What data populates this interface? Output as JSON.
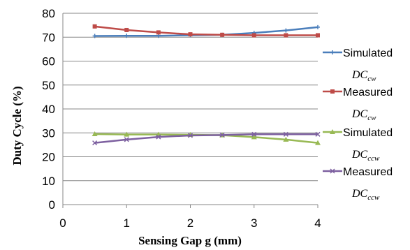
{
  "chart_data": {
    "type": "line",
    "title": "",
    "xlabel": "Sensing Gap g (mm)",
    "ylabel": "Duty Cycle (%)",
    "xlim": [
      0,
      4
    ],
    "ylim": [
      0,
      80
    ],
    "xticks": [
      "0",
      "1",
      "2",
      "3",
      "4"
    ],
    "yticks": [
      "0",
      "10",
      "20",
      "30",
      "40",
      "50",
      "60",
      "70",
      "80"
    ],
    "grid": "horizontal",
    "legend_position": "right",
    "x": [
      0.5,
      1.0,
      1.5,
      2.0,
      2.5,
      3.0,
      3.5,
      4.0
    ],
    "series": [
      {
        "name": "Simulated",
        "sub_main": "DC",
        "sub_script": "cw",
        "color": "#4a7ebb",
        "marker": "plus",
        "values": [
          70.5,
          70.6,
          70.6,
          70.8,
          71.0,
          71.8,
          72.8,
          74.2
        ]
      },
      {
        "name": "Measured",
        "sub_main": "DC",
        "sub_script": "cw",
        "color": "#be4b48",
        "marker": "square",
        "values": [
          74.5,
          73.0,
          72.0,
          71.2,
          71.0,
          70.8,
          70.8,
          70.8
        ]
      },
      {
        "name": "Simulated",
        "sub_main": "DC",
        "sub_script": "ccw",
        "color": "#98b954",
        "marker": "triangle",
        "values": [
          29.5,
          29.3,
          29.3,
          29.2,
          29.0,
          28.2,
          27.2,
          25.8
        ]
      },
      {
        "name": "Measured",
        "sub_main": "DC",
        "sub_script": "ccw",
        "color": "#7d60a0",
        "marker": "x",
        "values": [
          25.8,
          27.2,
          28.3,
          28.9,
          29.1,
          29.4,
          29.4,
          29.4
        ]
      }
    ]
  }
}
